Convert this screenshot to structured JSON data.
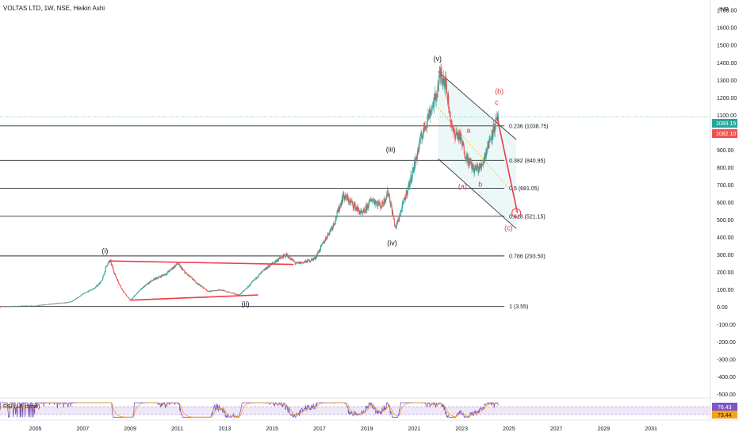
{
  "header": {
    "title": "VOLTAS LTD, 1W, NSE, Heikin Ashi",
    "currency": "INR"
  },
  "price_tags": [
    {
      "value": "1089.15",
      "color": "#26a69a"
    },
    {
      "value": "1082.10",
      "color": "#ef5350"
    }
  ],
  "rsi": {
    "label": "RSI (14, close)",
    "tags": [
      {
        "value": "76.43",
        "color": "#7e57c2"
      },
      {
        "value": "73.44",
        "color": "#f7a21b"
      }
    ]
  },
  "colors": {
    "up": "#26a69a",
    "down": "#ef5350",
    "trendline": "#ef3b46",
    "channel_fill": "#eaf6f6",
    "midline": "#e8d41c",
    "rsi_line": "#7e57c2",
    "rsi_ma": "#f7a21b",
    "rsi_band": "#ede7f6"
  },
  "chart_data": {
    "type": "candlestick",
    "title": "VOLTAS LTD, 1W, NSE, Heikin Ashi",
    "x_ticks": [
      "2005",
      "2007",
      "2009",
      "2011",
      "2013",
      "2015",
      "2017",
      "2019",
      "2021",
      "2023",
      "2025",
      "2027",
      "2029",
      "2031"
    ],
    "y_ticks": [
      "1700.00",
      "1600.00",
      "1500.00",
      "1400.00",
      "1300.00",
      "1200.00",
      "1100.00",
      "1000.00",
      "900.00",
      "800.00",
      "700.00",
      "600.00",
      "500.00",
      "400.00",
      "300.00",
      "200.00",
      "100.00",
      "0.00",
      "-100.00",
      "-200.00",
      "-300.00",
      "-400.00",
      "-500.00"
    ],
    "ylim": [
      -520,
      1760
    ],
    "xlim": [
      2003.5,
      2033.5
    ],
    "price_path": [
      [
        2003.5,
        3
      ],
      [
        2005.0,
        8
      ],
      [
        2006.5,
        30
      ],
      [
        2007.0,
        75
      ],
      [
        2007.5,
        110
      ],
      [
        2007.8,
        150
      ],
      [
        2008.0,
        240
      ],
      [
        2008.15,
        265
      ],
      [
        2008.4,
        170
      ],
      [
        2008.7,
        90
      ],
      [
        2009.0,
        40
      ],
      [
        2009.5,
        110
      ],
      [
        2010.0,
        160
      ],
      [
        2010.5,
        190
      ],
      [
        2011.0,
        250
      ],
      [
        2011.3,
        200
      ],
      [
        2011.8,
        140
      ],
      [
        2012.3,
        90
      ],
      [
        2012.8,
        100
      ],
      [
        2013.3,
        80
      ],
      [
        2013.6,
        70
      ],
      [
        2014.0,
        120
      ],
      [
        2014.4,
        180
      ],
      [
        2014.8,
        230
      ],
      [
        2015.2,
        270
      ],
      [
        2015.6,
        300
      ],
      [
        2016.0,
        250
      ],
      [
        2016.4,
        260
      ],
      [
        2016.8,
        280
      ],
      [
        2017.2,
        380
      ],
      [
        2017.6,
        480
      ],
      [
        2018.0,
        640
      ],
      [
        2018.4,
        590
      ],
      [
        2018.8,
        530
      ],
      [
        2019.2,
        620
      ],
      [
        2019.6,
        580
      ],
      [
        2019.9,
        660
      ],
      [
        2020.2,
        450
      ],
      [
        2020.5,
        580
      ],
      [
        2020.9,
        760
      ],
      [
        2021.3,
        980
      ],
      [
        2021.6,
        1100
      ],
      [
        2021.9,
        1200
      ],
      [
        2022.1,
        1340
      ],
      [
        2022.3,
        1300
      ],
      [
        2022.6,
        1010
      ],
      [
        2022.9,
        980
      ],
      [
        2023.2,
        860
      ],
      [
        2023.5,
        790
      ],
      [
        2023.8,
        800
      ],
      [
        2024.0,
        880
      ],
      [
        2024.25,
        990
      ],
      [
        2024.55,
        1090
      ]
    ],
    "wave_labels": [
      {
        "text": "(i)",
        "x": 2008.0,
        "y": 310,
        "color": "dark"
      },
      {
        "text": "(ii)",
        "x": 2013.9,
        "y": 5,
        "color": "dark"
      },
      {
        "text": "(iii)",
        "x": 2020.0,
        "y": 890,
        "color": "dark"
      },
      {
        "text": "(iv)",
        "x": 2020.05,
        "y": 355,
        "color": "dark"
      },
      {
        "text": "(v)",
        "x": 2022.0,
        "y": 1410,
        "color": "dark"
      },
      {
        "text": "(b)",
        "x": 2024.6,
        "y": 1225,
        "color": "red"
      },
      {
        "text": "c",
        "x": 2024.6,
        "y": 1160,
        "color": "red"
      },
      {
        "text": "a",
        "x": 2023.4,
        "y": 1000,
        "color": "red"
      },
      {
        "text": "(a)",
        "x": 2023.05,
        "y": 680,
        "color": "red"
      },
      {
        "text": "b",
        "x": 2023.9,
        "y": 690,
        "color": "red"
      },
      {
        "text": "(c)",
        "x": 2025.0,
        "y": 440,
        "color": "red"
      }
    ],
    "fib_levels": [
      {
        "label": "0.236 (1038.75)",
        "value": 1038.75
      },
      {
        "label": "0.382 (840.95)",
        "value": 840.95
      },
      {
        "label": "0.5 (681.05)",
        "value": 681.05
      },
      {
        "label": "0.618 (521.15)",
        "value": 521.15
      },
      {
        "label": "0.786 (293.50)",
        "value": 293.5
      },
      {
        "label": "1 (3.55)",
        "value": 3.55
      }
    ],
    "fib_x_range": [
      2003.5,
      2024.8
    ],
    "triangle": {
      "upper": [
        [
          2008.1,
          265
        ],
        [
          2015.9,
          245
        ]
      ],
      "lower": [
        [
          2009.0,
          40
        ],
        [
          2014.4,
          70
        ]
      ]
    },
    "channel": {
      "upper": [
        [
          2022.0,
          1350
        ],
        [
          2025.3,
          960
        ]
      ],
      "lower": [
        [
          2022.0,
          850
        ],
        [
          2025.3,
          450
        ]
      ],
      "mid": [
        [
          2022.0,
          1140
        ],
        [
          2025.0,
          680
        ]
      ]
    },
    "projection": [
      [
        2024.5,
        1085
      ],
      [
        2025.35,
        540
      ]
    ],
    "target_circle": {
      "x": 2025.3,
      "y": 540
    },
    "rsi_ylim": [
      0,
      100
    ],
    "rsi_band": [
      30,
      70
    ]
  }
}
